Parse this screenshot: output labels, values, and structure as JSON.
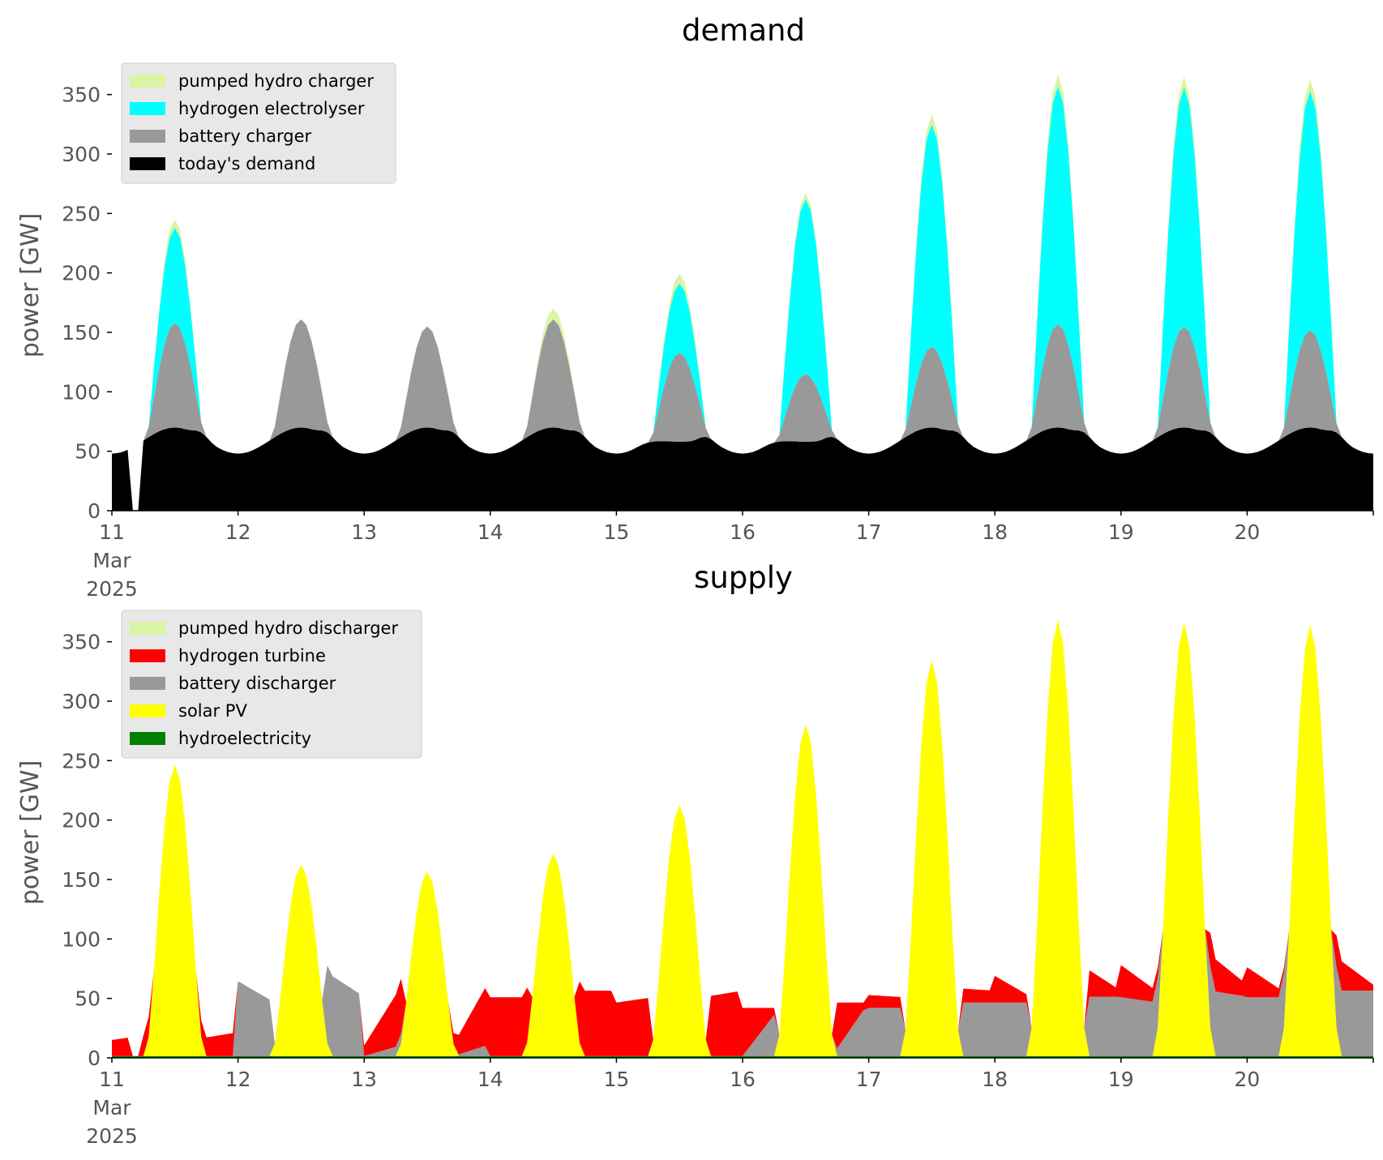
{
  "chart_data": [
    {
      "type": "area",
      "title": "demand",
      "ylabel": "power [GW]",
      "xlabel": "",
      "ylim": [
        0,
        375
      ],
      "yticks": [
        0,
        50,
        100,
        150,
        200,
        250,
        300,
        350
      ],
      "xlim_days": [
        11,
        21
      ],
      "xticks": [
        {
          "day": 11,
          "label": "11",
          "sub": [
            "Mar",
            "2025"
          ]
        },
        {
          "day": 12,
          "label": "12"
        },
        {
          "day": 13,
          "label": "13"
        },
        {
          "day": 14,
          "label": "14"
        },
        {
          "day": 15,
          "label": "15"
        },
        {
          "day": 16,
          "label": "16"
        },
        {
          "day": 17,
          "label": "17"
        },
        {
          "day": 18,
          "label": "18"
        },
        {
          "day": 19,
          "label": "19"
        },
        {
          "day": 20,
          "label": "20"
        }
      ],
      "grid": false,
      "legend_position": "top-left",
      "series": [
        {
          "name": "today's demand",
          "color": "#000000"
        },
        {
          "name": "battery charger",
          "color": "#999999"
        },
        {
          "name": "hydrogen electrolyser",
          "color": "#00ffff"
        },
        {
          "name": "pumped hydro charger",
          "color": "#d9f5a5"
        }
      ],
      "legend_order": [
        "pumped hydro charger",
        "hydrogen electrolyser",
        "battery charger",
        "today's demand"
      ],
      "daily_peaks": [
        {
          "day": 11,
          "battery_top": 158,
          "electrolyser_top": 238,
          "total_top": 245
        },
        {
          "day": 12,
          "battery_top": 161,
          "electrolyser_top": 161,
          "total_top": 161
        },
        {
          "day": 13,
          "battery_top": 155,
          "electrolyser_top": 155,
          "total_top": 155
        },
        {
          "day": 14,
          "battery_top": 161,
          "electrolyser_top": 161,
          "total_top": 170
        },
        {
          "day": 15,
          "battery_top": 145,
          "electrolyser_top": 203,
          "total_top": 211
        },
        {
          "day": 16,
          "battery_top": 127,
          "electrolyser_top": 274,
          "total_top": 279
        },
        {
          "day": 17,
          "battery_top": 138,
          "electrolyser_top": 325,
          "total_top": 333
        },
        {
          "day": 18,
          "battery_top": 157,
          "electrolyser_top": 357,
          "total_top": 367
        },
        {
          "day": 19,
          "battery_top": 155,
          "electrolyser_top": 356,
          "total_top": 365
        },
        {
          "day": 20,
          "battery_top": 152,
          "electrolyser_top": 353,
          "total_top": 363
        }
      ],
      "demand_profile": {
        "night_min": 48,
        "morning_level": 70,
        "evening_peak": 69
      }
    },
    {
      "type": "area",
      "title": "supply",
      "ylabel": "power [GW]",
      "xlabel": "",
      "ylim": [
        0,
        375
      ],
      "yticks": [
        0,
        50,
        100,
        150,
        200,
        250,
        300,
        350
      ],
      "xlim_days": [
        11,
        21
      ],
      "xticks": [
        {
          "day": 11,
          "label": "11",
          "sub": [
            "Mar",
            "2025"
          ]
        },
        {
          "day": 12,
          "label": "12"
        },
        {
          "day": 13,
          "label": "13"
        },
        {
          "day": 14,
          "label": "14"
        },
        {
          "day": 15,
          "label": "15"
        },
        {
          "day": 16,
          "label": "16"
        },
        {
          "day": 17,
          "label": "17"
        },
        {
          "day": 18,
          "label": "18"
        },
        {
          "day": 19,
          "label": "19"
        },
        {
          "day": 20,
          "label": "20"
        }
      ],
      "grid": false,
      "legend_position": "top-left",
      "series": [
        {
          "name": "hydroelectricity",
          "color": "#008000"
        },
        {
          "name": "solar PV",
          "color": "#ffff00"
        },
        {
          "name": "battery discharger",
          "color": "#999999"
        },
        {
          "name": "hydrogen turbine",
          "color": "#ff0000"
        },
        {
          "name": "pumped hydro discharger",
          "color": "#d9f5a5"
        }
      ],
      "legend_order": [
        "pumped hydro discharger",
        "hydrogen turbine",
        "battery discharger",
        "solar PV",
        "hydroelectricity"
      ],
      "daily_solar_peaks": [
        {
          "day": 11,
          "value": 245
        },
        {
          "day": 12,
          "value": 161
        },
        {
          "day": 13,
          "value": 155
        },
        {
          "day": 14,
          "value": 170
        },
        {
          "day": 15,
          "value": 211
        },
        {
          "day": 16,
          "value": 279
        },
        {
          "day": 17,
          "value": 333
        },
        {
          "day": 18,
          "value": 367
        },
        {
          "day": 19,
          "value": 365
        },
        {
          "day": 20,
          "value": 363
        }
      ],
      "nights": [
        {
          "start_day": 11,
          "hydrogen": [
            15,
            20
          ],
          "battery": [
            0,
            0
          ],
          "pumped": 8
        },
        {
          "start_day": 11,
          "hydrogen": [
            0,
            0
          ],
          "battery": [
            70,
            50
          ],
          "pumped": 0
        },
        {
          "start_day": 12,
          "hydrogen": [
            10,
            55
          ],
          "battery": [
            0,
            10
          ],
          "pumped": 6
        },
        {
          "start_day": 13,
          "hydrogen": [
            55,
            55
          ],
          "battery": [
            0,
            0
          ],
          "pumped": 0
        },
        {
          "start_day": 14,
          "hydrogen": [
            50,
            55
          ],
          "battery": [
            0,
            0
          ],
          "pumped": 0
        },
        {
          "start_day": 15,
          "hydrogen": [
            45,
            0
          ],
          "battery": [
            0,
            45
          ],
          "pumped": 8
        },
        {
          "start_day": 16,
          "hydrogen": [
            12,
            10
          ],
          "battery": [
            45,
            45
          ],
          "pumped": 8
        },
        {
          "start_day": 17,
          "hydrogen": [
            25,
            5
          ],
          "battery": [
            50,
            50
          ],
          "pumped": 8
        },
        {
          "start_day": 18,
          "hydrogen": [
            30,
            10
          ],
          "battery": [
            55,
            50
          ],
          "pumped": 8
        },
        {
          "start_day": 19,
          "hydrogen": [
            28,
            5
          ],
          "battery": [
            55,
            55
          ],
          "pumped": 8
        }
      ]
    }
  ]
}
